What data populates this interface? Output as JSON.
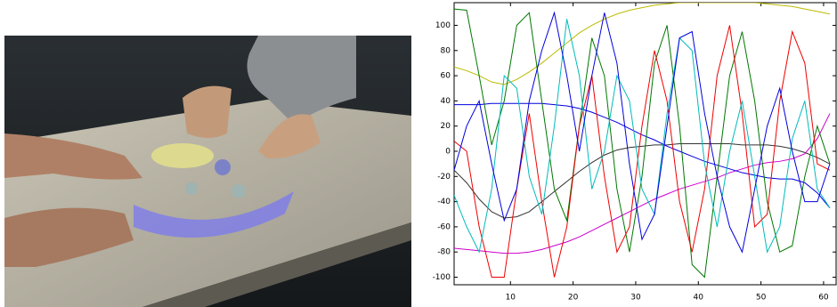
{
  "chart_data": {
    "type": "line",
    "x": [
      1,
      3,
      5,
      7,
      9,
      11,
      13,
      15,
      17,
      19,
      21,
      23,
      25,
      27,
      29,
      31,
      33,
      35,
      37,
      39,
      41,
      43,
      45,
      47,
      49,
      51,
      53,
      55,
      57,
      59,
      61
    ],
    "xlim": [
      1,
      62
    ],
    "xticks": [
      10,
      20,
      30,
      40,
      50,
      60
    ],
    "ylim": [
      -106,
      118
    ],
    "yticks": [
      -100,
      -80,
      -60,
      -40,
      -20,
      0,
      20,
      40,
      60,
      80,
      100
    ],
    "series": [
      {
        "color": "#bbbb00",
        "values": [
          67,
          64,
          60,
          55,
          53,
          57,
          63,
          70,
          78,
          86,
          94,
          100,
          105,
          109,
          112,
          114,
          116,
          117,
          118,
          118,
          118,
          118,
          118,
          118,
          118,
          117,
          116,
          115,
          113,
          111,
          109
        ]
      },
      {
        "color": "#333333",
        "values": [
          -15,
          -25,
          -38,
          -48,
          -53,
          -52,
          -48,
          -40,
          -32,
          -24,
          -16,
          -9,
          -3,
          1,
          3,
          4,
          5,
          5,
          6,
          6,
          6,
          6,
          6,
          5,
          5,
          5,
          4,
          2,
          -1,
          -5,
          -10
        ]
      },
      {
        "color": "#cc00cc",
        "values": [
          -77,
          -78,
          -79,
          -80,
          -81,
          -81,
          -80,
          -78,
          -75,
          -72,
          -68,
          -63,
          -58,
          -53,
          -48,
          -43,
          -38,
          -34,
          -30,
          -27,
          -24,
          -21,
          -17,
          -14,
          -11,
          -9,
          -8,
          -6,
          -2,
          10,
          30
        ]
      },
      {
        "color": "#0000dd",
        "values": [
          37,
          37,
          37,
          38,
          38,
          38,
          38,
          38,
          37,
          36,
          34,
          31,
          27,
          23,
          18,
          13,
          9,
          4,
          0,
          -4,
          -8,
          -11,
          -14,
          -17,
          -19,
          -21,
          -22,
          -22,
          -25,
          -33,
          -45
        ]
      },
      {
        "color": "#007700",
        "values": [
          113,
          112,
          60,
          5,
          40,
          100,
          110,
          40,
          -30,
          -55,
          20,
          90,
          60,
          -30,
          -80,
          -20,
          70,
          100,
          20,
          -90,
          -100,
          -20,
          60,
          95,
          40,
          -40,
          -80,
          -75,
          -20,
          20,
          -10
        ]
      },
      {
        "color": "#ee0000",
        "values": [
          8,
          0,
          -60,
          -100,
          -100,
          -30,
          30,
          -40,
          -100,
          -60,
          20,
          60,
          -20,
          -80,
          -60,
          20,
          80,
          40,
          -40,
          -80,
          -30,
          60,
          100,
          30,
          -60,
          -50,
          40,
          95,
          70,
          -10,
          -15
        ]
      },
      {
        "color": "#00bbbb",
        "values": [
          -35,
          -60,
          -80,
          -30,
          60,
          50,
          -20,
          -50,
          20,
          105,
          60,
          -30,
          0,
          60,
          40,
          -30,
          -50,
          30,
          90,
          80,
          -10,
          -60,
          0,
          40,
          -20,
          -80,
          -60,
          10,
          40,
          -30,
          -45
        ]
      },
      {
        "color": "#0000dd",
        "values": [
          -15,
          20,
          40,
          -10,
          -55,
          -30,
          40,
          80,
          110,
          60,
          0,
          60,
          110,
          70,
          -10,
          -70,
          -50,
          20,
          90,
          95,
          30,
          -20,
          -60,
          -80,
          -30,
          20,
          50,
          0,
          -40,
          -40,
          -10
        ]
      }
    ]
  }
}
